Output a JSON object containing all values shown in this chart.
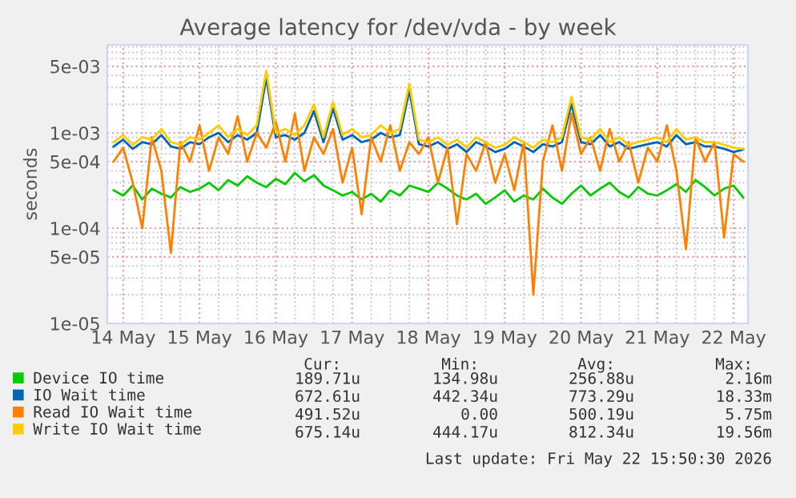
{
  "chart_data": {
    "type": "line",
    "title": "Average latency for /dev/vda - by week",
    "ylabel": "seconds",
    "x": [
      "2026-05-13T21:00",
      "2026-05-14T00:00",
      "2026-05-14T03:00",
      "2026-05-14T06:00",
      "2026-05-14T09:00",
      "2026-05-14T12:00",
      "2026-05-14T15:00",
      "2026-05-14T18:00",
      "2026-05-14T21:00",
      "2026-05-15T00:00",
      "2026-05-15T03:00",
      "2026-05-15T06:00",
      "2026-05-15T09:00",
      "2026-05-15T12:00",
      "2026-05-15T15:00",
      "2026-05-15T18:00",
      "2026-05-15T21:00",
      "2026-05-16T00:00",
      "2026-05-16T03:00",
      "2026-05-16T06:00",
      "2026-05-16T09:00",
      "2026-05-16T12:00",
      "2026-05-16T15:00",
      "2026-05-16T18:00",
      "2026-05-16T21:00",
      "2026-05-17T00:00",
      "2026-05-17T03:00",
      "2026-05-17T06:00",
      "2026-05-17T09:00",
      "2026-05-17T12:00",
      "2026-05-17T15:00",
      "2026-05-17T18:00",
      "2026-05-17T21:00",
      "2026-05-18T00:00",
      "2026-05-18T03:00",
      "2026-05-18T06:00",
      "2026-05-18T09:00",
      "2026-05-18T12:00",
      "2026-05-18T15:00",
      "2026-05-18T18:00",
      "2026-05-18T21:00",
      "2026-05-19T00:00",
      "2026-05-19T03:00",
      "2026-05-19T06:00",
      "2026-05-19T09:00",
      "2026-05-19T12:00",
      "2026-05-19T15:00",
      "2026-05-19T18:00",
      "2026-05-19T21:00",
      "2026-05-20T00:00",
      "2026-05-20T03:00",
      "2026-05-20T06:00",
      "2026-05-20T09:00",
      "2026-05-20T12:00",
      "2026-05-20T15:00",
      "2026-05-20T18:00",
      "2026-05-20T21:00",
      "2026-05-21T00:00",
      "2026-05-21T03:00",
      "2026-05-21T06:00",
      "2026-05-21T09:00",
      "2026-05-21T12:00",
      "2026-05-21T15:00",
      "2026-05-21T18:00",
      "2026-05-21T21:00",
      "2026-05-22T00:00",
      "2026-05-22T03:00"
    ],
    "series": [
      {
        "name": "Device IO time",
        "color": "#00cc00",
        "values": [
          0.00025,
          0.00022,
          0.00028,
          0.0002,
          0.00026,
          0.00023,
          0.00021,
          0.00027,
          0.00024,
          0.00026,
          0.0003,
          0.00025,
          0.00032,
          0.00028,
          0.00035,
          0.0003,
          0.00027,
          0.00033,
          0.00029,
          0.00038,
          0.00031,
          0.00036,
          0.00028,
          0.00025,
          0.00022,
          0.00024,
          0.0002,
          0.00023,
          0.00019,
          0.00025,
          0.00022,
          0.00028,
          0.00026,
          0.00024,
          0.0003,
          0.00026,
          0.00022,
          0.0002,
          0.00023,
          0.00018,
          0.00021,
          0.00025,
          0.00019,
          0.00022,
          0.0002,
          0.00026,
          0.00021,
          0.00018,
          0.00023,
          0.00028,
          0.00022,
          0.00026,
          0.0003,
          0.00024,
          0.00021,
          0.00027,
          0.00023,
          0.00022,
          0.00025,
          0.00029,
          0.00024,
          0.00032,
          0.00027,
          0.00022,
          0.00026,
          0.00028,
          0.00021
        ]
      },
      {
        "name": "IO Wait time",
        "color": "#0066b3",
        "values": [
          0.00072,
          0.00085,
          0.00068,
          0.0008,
          0.00076,
          0.00095,
          0.00072,
          0.00068,
          0.0008,
          0.00076,
          0.0009,
          0.001,
          0.0008,
          0.00095,
          0.00085,
          0.001,
          0.0038,
          0.0009,
          0.00095,
          0.00085,
          0.001,
          0.0017,
          0.0008,
          0.0018,
          0.00085,
          0.00095,
          0.0008,
          0.00085,
          0.001,
          0.0009,
          0.00095,
          0.0028,
          0.00076,
          0.00072,
          0.0008,
          0.00068,
          0.00076,
          0.00063,
          0.0008,
          0.00072,
          0.00063,
          0.00068,
          0.0008,
          0.00072,
          0.00063,
          0.00076,
          0.00072,
          0.0008,
          0.002,
          0.0008,
          0.00076,
          0.00095,
          0.00072,
          0.0008,
          0.00068,
          0.00072,
          0.00076,
          0.0008,
          0.00072,
          0.00095,
          0.00076,
          0.0008,
          0.00072,
          0.00072,
          0.00068,
          0.00063,
          0.00067
        ]
      },
      {
        "name": "Read IO Wait time",
        "color": "#ff8000",
        "values": [
          0.0005,
          0.0007,
          0.0003,
          0.0001,
          0.0009,
          0.0004,
          5.5e-05,
          0.0008,
          0.0005,
          0.0012,
          0.0004,
          0.0009,
          0.0006,
          0.0015,
          0.0005,
          0.001,
          0.0007,
          0.0013,
          0.0005,
          0.0016,
          0.0004,
          0.0009,
          0.0006,
          0.0011,
          0.0003,
          0.0007,
          0.00014,
          0.0009,
          0.0005,
          0.0012,
          0.0004,
          0.0008,
          0.0006,
          0.0009,
          0.0003,
          0.0007,
          0.00011,
          0.0006,
          0.0004,
          0.0008,
          0.0003,
          0.0006,
          0.00025,
          0.0008,
          2e-05,
          0.0005,
          0.0012,
          0.0004,
          0.0016,
          0.0006,
          0.0009,
          0.0004,
          0.0011,
          0.0005,
          0.0008,
          0.0003,
          0.0007,
          0.0005,
          0.0012,
          0.0004,
          6e-05,
          0.0009,
          0.0005,
          0.0008,
          8e-05,
          0.0006,
          0.0005
        ]
      },
      {
        "name": "Write IO Wait time",
        "color": "#ffcc00",
        "values": [
          0.0008,
          0.00095,
          0.00075,
          0.0009,
          0.00085,
          0.0011,
          0.0008,
          0.00075,
          0.0009,
          0.00085,
          0.001,
          0.0012,
          0.0009,
          0.0011,
          0.00095,
          0.0012,
          0.0045,
          0.001,
          0.0011,
          0.00095,
          0.0012,
          0.002,
          0.0009,
          0.0021,
          0.00095,
          0.0011,
          0.0009,
          0.00095,
          0.0012,
          0.001,
          0.0011,
          0.0033,
          0.00085,
          0.0008,
          0.0009,
          0.00075,
          0.00085,
          0.0007,
          0.0009,
          0.0008,
          0.0007,
          0.00075,
          0.0009,
          0.0008,
          0.0007,
          0.00085,
          0.0008,
          0.0009,
          0.0024,
          0.0009,
          0.00085,
          0.0011,
          0.0008,
          0.0009,
          0.00075,
          0.0008,
          0.00085,
          0.0009,
          0.0008,
          0.0011,
          0.00085,
          0.0009,
          0.0008,
          0.0008,
          0.00075,
          0.0007,
          0.00068
        ]
      }
    ],
    "log": "y",
    "xlim": [
      "2026-05-13T19:00",
      "2026-05-22T04:30"
    ],
    "xticks": [
      {
        "value": "2026-05-14",
        "label": "14 May"
      },
      {
        "value": "2026-05-15",
        "label": "15 May"
      },
      {
        "value": "2026-05-16",
        "label": "16 May"
      },
      {
        "value": "2026-05-17",
        "label": "17 May"
      },
      {
        "value": "2026-05-18",
        "label": "18 May"
      },
      {
        "value": "2026-05-19",
        "label": "19 May"
      },
      {
        "value": "2026-05-20",
        "label": "20 May"
      },
      {
        "value": "2026-05-21",
        "label": "21 May"
      },
      {
        "value": "2026-05-22",
        "label": "22 May"
      }
    ],
    "ylim": [
      1e-05,
      0.0084
    ],
    "yticks": [
      {
        "value": 1e-05,
        "label": "1e-05"
      },
      {
        "value": 5e-05,
        "label": "5e-05"
      },
      {
        "value": 0.0001,
        "label": "1e-04"
      },
      {
        "value": 0.0005,
        "label": "5e-04"
      },
      {
        "value": 0.001,
        "label": "1e-03"
      },
      {
        "value": 0.005,
        "label": "5e-03"
      }
    ],
    "grid": true,
    "legend": "bottom",
    "annotations": [
      "Cur:",
      "Min:",
      "Avg:",
      "Max:",
      "189.71u",
      "134.98u",
      "256.88u",
      "2.16m",
      "672.61u",
      "442.34u",
      "773.29u",
      "18.33m",
      "491.52u",
      "0.00",
      "500.19u",
      "5.75m",
      "675.14u",
      "444.17u",
      "812.34u",
      "19.56m",
      "Last update: Fri May 22 15:50:30 2026"
    ]
  }
}
